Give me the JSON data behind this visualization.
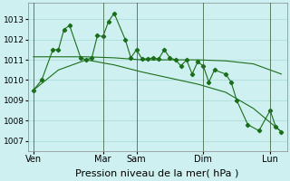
{
  "bg_color": "#cff0f0",
  "grid_color": "#a8d8d8",
  "line_color": "#1a6e1a",
  "xlabel": "Pression niveau de la mer( hPa )",
  "xlabel_fontsize": 8,
  "yticks": [
    1007,
    1008,
    1009,
    1010,
    1011,
    1012,
    1013
  ],
  "ylim": [
    1006.5,
    1013.8
  ],
  "day_labels": [
    "Ven",
    "Mar",
    "Sam",
    "Dim",
    "Lun"
  ],
  "day_positions": [
    0.5,
    13,
    19,
    31,
    43
  ],
  "xlim": [
    -0.5,
    46
  ],
  "series1_x": [
    0.5,
    2,
    4,
    5,
    6,
    7,
    9,
    10,
    11,
    12,
    13,
    14,
    15,
    17,
    18,
    19,
    20,
    21,
    22,
    23,
    24,
    25,
    26,
    27,
    28,
    29,
    30,
    31,
    32,
    33,
    35,
    36,
    37,
    39,
    41,
    43,
    44,
    45
  ],
  "series1_y": [
    1009.5,
    1010.0,
    1011.5,
    1011.5,
    1012.5,
    1012.7,
    1011.1,
    1011.0,
    1011.1,
    1012.2,
    1012.15,
    1012.9,
    1013.3,
    1012.0,
    1011.1,
    1011.5,
    1011.05,
    1011.05,
    1011.1,
    1011.05,
    1011.5,
    1011.1,
    1011.0,
    1010.7,
    1011.0,
    1010.3,
    1010.9,
    1010.7,
    1009.9,
    1010.5,
    1010.3,
    1009.9,
    1009.0,
    1007.8,
    1007.5,
    1008.5,
    1007.7,
    1007.45
  ],
  "series2_x": [
    0.5,
    5,
    10,
    15,
    20,
    25,
    30,
    35,
    40,
    45
  ],
  "series2_y": [
    1011.15,
    1011.15,
    1011.15,
    1011.1,
    1011.0,
    1011.0,
    1011.0,
    1010.95,
    1010.8,
    1010.3
  ],
  "series3_x": [
    0.5,
    5,
    10,
    15,
    20,
    25,
    30,
    35,
    40,
    45
  ],
  "series3_y": [
    1009.5,
    1010.5,
    1011.0,
    1010.75,
    1010.4,
    1010.1,
    1009.8,
    1009.4,
    1008.6,
    1007.45
  ]
}
